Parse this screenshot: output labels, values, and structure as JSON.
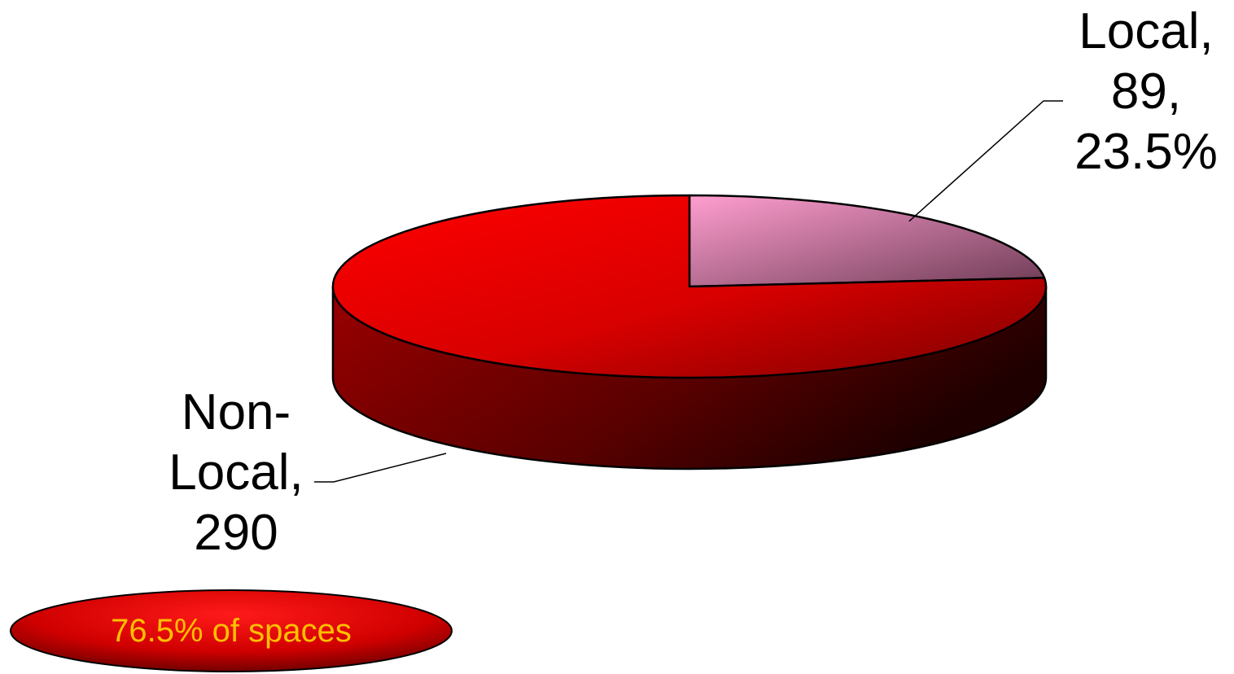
{
  "chart_data": {
    "type": "pie",
    "style": "3d",
    "categories": [
      "Local",
      "Non-Local"
    ],
    "values": [
      89,
      290
    ],
    "percent": [
      23.5,
      76.5
    ],
    "colors": {
      "Local": "#f4a0cc",
      "Non-Local": "#ff0000",
      "callout_text": "#ffc000"
    },
    "data_labels": {
      "local": {
        "line1": "Local,",
        "line2": "89,",
        "line3": "23.5%"
      },
      "nonlocal": {
        "line1": "Non-",
        "line2": "Local,",
        "line3": "290"
      }
    },
    "callout": "76.5% of spaces"
  }
}
